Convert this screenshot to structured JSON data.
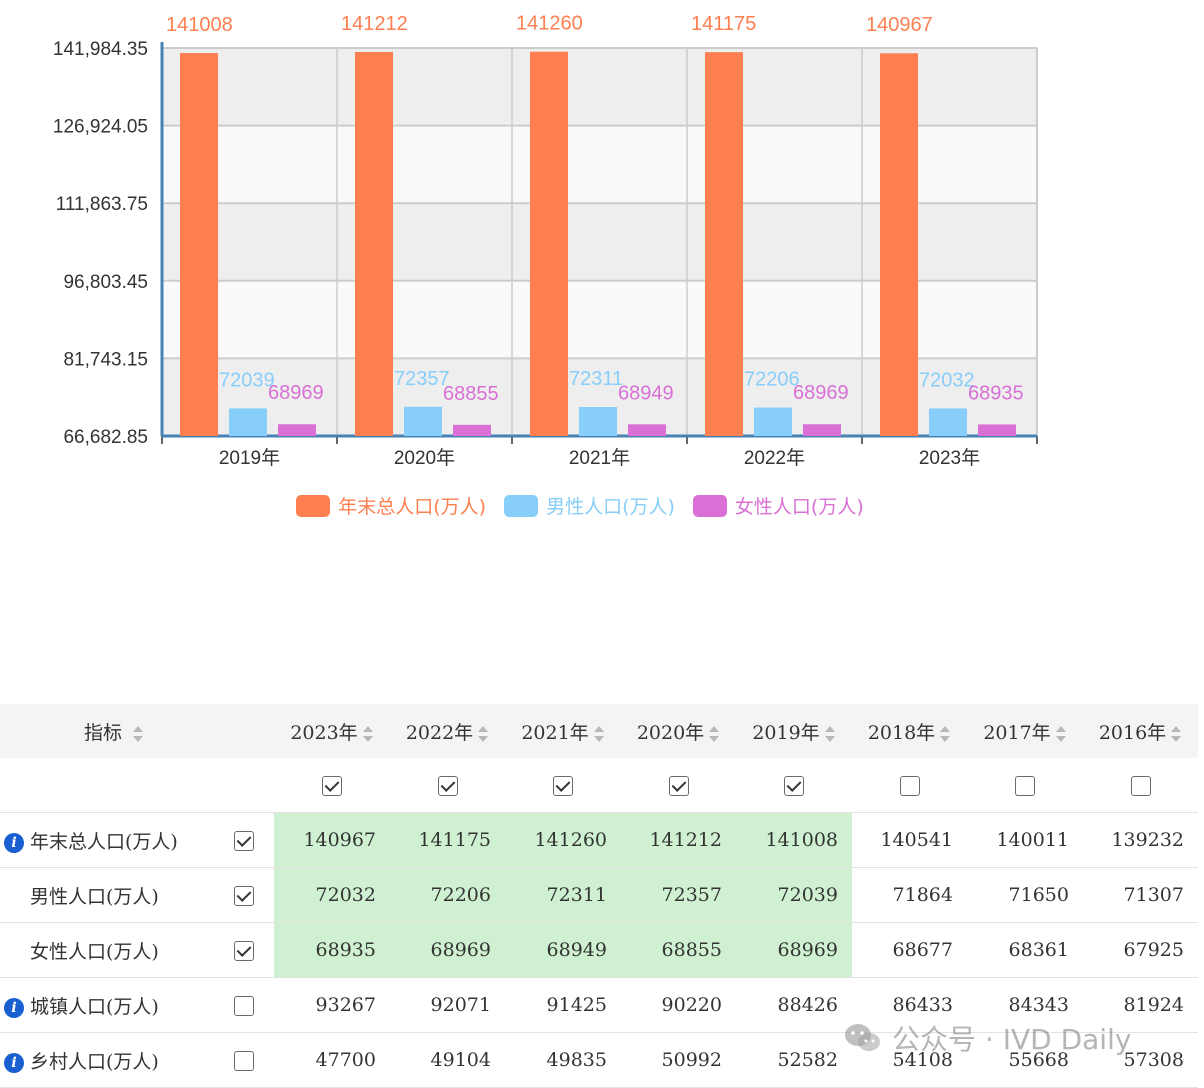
{
  "chart_data": {
    "type": "bar",
    "categories": [
      "2019年",
      "2020年",
      "2021年",
      "2022年",
      "2023年"
    ],
    "series": [
      {
        "name": "年末总人口(万人)",
        "values": [
          141008,
          141212,
          141260,
          141175,
          140967
        ],
        "color": "#ff7f50"
      },
      {
        "name": "男性人口(万人)",
        "values": [
          72039,
          72357,
          72311,
          72206,
          72032
        ],
        "color": "#87cefa"
      },
      {
        "name": "女性人口(万人)",
        "values": [
          68969,
          68855,
          68949,
          68969,
          68935
        ],
        "color": "#da70d6"
      }
    ],
    "yticks": [
      "66,682.85",
      "81,743.15",
      "96,803.45",
      "111,863.75",
      "126,924.05",
      "141,984.35"
    ],
    "ylim": [
      66682.85,
      141984.35
    ],
    "grid": true,
    "legend_position": "bottom-center"
  },
  "table": {
    "header": {
      "indicator": "指标",
      "years": [
        "2023年",
        "2022年",
        "2021年",
        "2020年",
        "2019年",
        "2018年",
        "2017年",
        "2016年"
      ]
    },
    "year_checked": [
      true,
      true,
      true,
      true,
      true,
      false,
      false,
      false
    ],
    "rows": [
      {
        "label": "年末总人口(万人)",
        "info": true,
        "checked": true,
        "values": [
          "140967",
          "141175",
          "141260",
          "141212",
          "141008",
          "140541",
          "140011",
          "139232"
        ]
      },
      {
        "label": "男性人口(万人)",
        "info": false,
        "checked": true,
        "values": [
          "72032",
          "72206",
          "72311",
          "72357",
          "72039",
          "71864",
          "71650",
          "71307"
        ]
      },
      {
        "label": "女性人口(万人)",
        "info": false,
        "checked": true,
        "values": [
          "68935",
          "68969",
          "68949",
          "68855",
          "68969",
          "68677",
          "68361",
          "67925"
        ]
      },
      {
        "label": "城镇人口(万人)",
        "info": true,
        "checked": false,
        "values": [
          "93267",
          "92071",
          "91425",
          "90220",
          "88426",
          "86433",
          "84343",
          "81924"
        ]
      },
      {
        "label": "乡村人口(万人)",
        "info": true,
        "checked": false,
        "values": [
          "47700",
          "49104",
          "49835",
          "50992",
          "52582",
          "54108",
          "55668",
          "57308"
        ]
      }
    ]
  },
  "watermark": {
    "text": "公众号 · IVD Daily"
  }
}
